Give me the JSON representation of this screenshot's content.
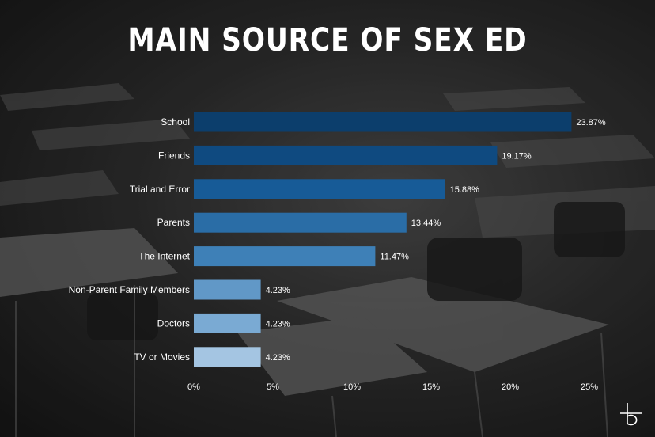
{
  "title": "MAIN SOURCE OF SEX ED",
  "chart_data": {
    "type": "bar",
    "orientation": "horizontal",
    "title": "MAIN SOURCE OF SEX ED",
    "xlabel": "",
    "ylabel": "",
    "xlim": [
      0,
      25
    ],
    "xticks": [
      0,
      5,
      10,
      15,
      20,
      25
    ],
    "xtick_labels": [
      "0%",
      "5%",
      "10%",
      "15%",
      "20%",
      "25%"
    ],
    "grid": false,
    "categories": [
      "School",
      "Friends",
      "Trial and Error",
      "Parents",
      "The Internet",
      "Non-Parent Family Members",
      "Doctors",
      "TV or Movies"
    ],
    "values": [
      23.87,
      19.17,
      15.88,
      13.44,
      11.47,
      4.23,
      4.23,
      4.23
    ],
    "value_labels": [
      "23.87%",
      "19.17%",
      "15.88%",
      "13.44%",
      "11.47%",
      "4.23%",
      "4.23%",
      "4.23%"
    ],
    "bar_colors": [
      "#0c3e6c",
      "#0f4a80",
      "#175b97",
      "#2a6da6",
      "#3e80b7",
      "#6198c7",
      "#7aaad3",
      "#a4c5e2"
    ]
  },
  "logo": {
    "icon": "brand-b-logo-icon"
  }
}
